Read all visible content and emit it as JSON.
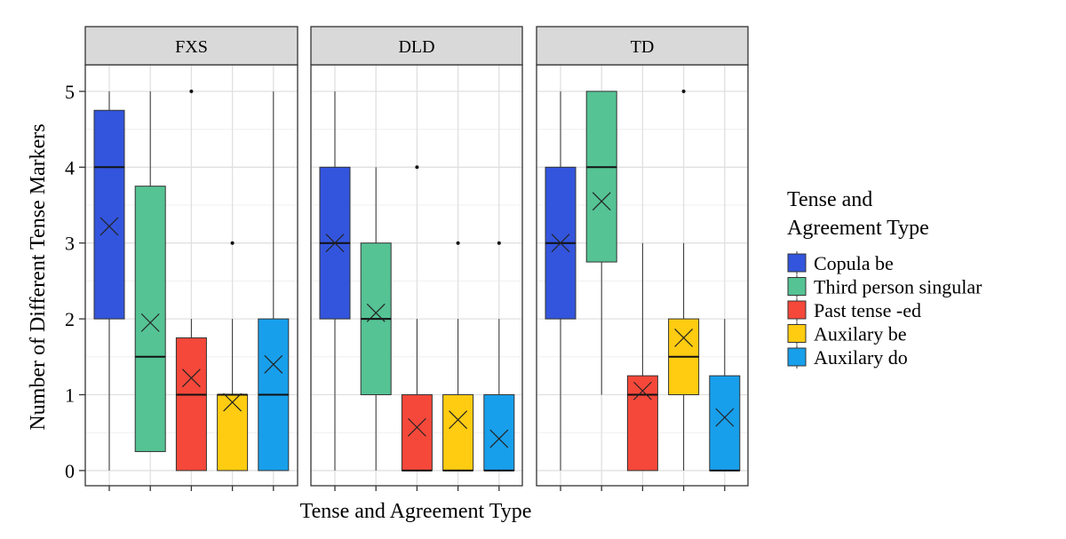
{
  "chart_data": {
    "type": "boxplot",
    "facets": [
      "FXS",
      "DLD",
      "TD"
    ],
    "ylabel": "Number of Different Tense Markers",
    "xlabel": "Tense and Agreement Type",
    "ylim": [
      -0.2,
      5.35
    ],
    "yticks": [
      0,
      1,
      2,
      3,
      4,
      5
    ],
    "grid": true,
    "legend": {
      "title_lines": [
        "Tense and",
        "Agreement Type"
      ],
      "position": "right"
    },
    "series": [
      {
        "name": "Copula be",
        "color": "#3355DD"
      },
      {
        "name": "Third person singular",
        "color": "#55C394"
      },
      {
        "name": "Past tense -ed",
        "color": "#F5483A"
      },
      {
        "name": "Auxilary be",
        "color": "#FFCC11"
      },
      {
        "name": "Auxilary do",
        "color": "#189FEB"
      }
    ],
    "boxes": {
      "FXS": [
        {
          "min": 0,
          "q1": 2,
          "median": 4,
          "q3": 4.75,
          "max": 5,
          "mean": 3.22,
          "outliers": []
        },
        {
          "min": 0.25,
          "q1": 0.25,
          "median": 1.5,
          "q3": 3.75,
          "max": 5,
          "mean": 1.95,
          "outliers": []
        },
        {
          "min": 0,
          "q1": 0,
          "median": 1,
          "q3": 1.75,
          "max": 2,
          "mean": 1.22,
          "outliers": [
            5
          ]
        },
        {
          "min": 0,
          "q1": 0,
          "median": 1,
          "q3": 1,
          "max": 2,
          "mean": 0.9,
          "outliers": [
            3
          ]
        },
        {
          "min": 0,
          "q1": 0,
          "median": 1,
          "q3": 2,
          "max": 5,
          "mean": 1.4,
          "outliers": []
        }
      ],
      "DLD": [
        {
          "min": 0,
          "q1": 2,
          "median": 3,
          "q3": 4,
          "max": 5,
          "mean": 3.0,
          "outliers": []
        },
        {
          "min": 0,
          "q1": 1,
          "median": 2,
          "q3": 3,
          "max": 4,
          "mean": 2.08,
          "outliers": []
        },
        {
          "min": 0,
          "q1": 0,
          "median": 0,
          "q3": 1,
          "max": 2,
          "mean": 0.57,
          "outliers": [
            4
          ]
        },
        {
          "min": 0,
          "q1": 0,
          "median": 0,
          "q3": 1,
          "max": 2,
          "mean": 0.67,
          "outliers": [
            3
          ]
        },
        {
          "min": 0,
          "q1": 0,
          "median": 0,
          "q3": 1,
          "max": 2,
          "mean": 0.42,
          "outliers": [
            3
          ]
        }
      ],
      "TD": [
        {
          "min": 0,
          "q1": 2,
          "median": 3,
          "q3": 4,
          "max": 5,
          "mean": 3.0,
          "outliers": []
        },
        {
          "min": 1,
          "q1": 2.75,
          "median": 4,
          "q3": 5,
          "max": 5,
          "mean": 3.55,
          "outliers": []
        },
        {
          "min": 0,
          "q1": 0,
          "median": 1,
          "q3": 1.25,
          "max": 3,
          "mean": 1.05,
          "outliers": []
        },
        {
          "min": 0,
          "q1": 1,
          "median": 1.5,
          "q3": 2,
          "max": 3,
          "mean": 1.75,
          "outliers": [
            5
          ]
        },
        {
          "min": 0,
          "q1": 0,
          "median": 0,
          "q3": 1.25,
          "max": 2,
          "mean": 0.7,
          "outliers": []
        }
      ]
    }
  }
}
